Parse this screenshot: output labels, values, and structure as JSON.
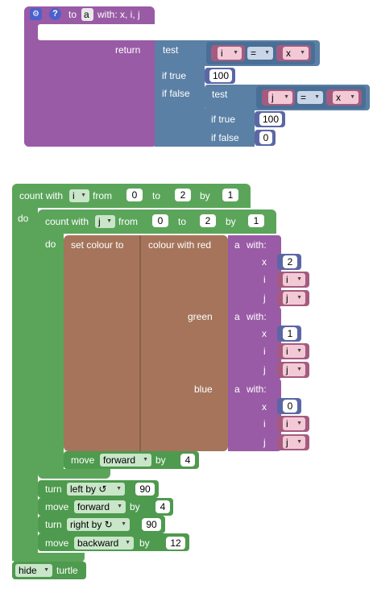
{
  "proc": {
    "to": "to",
    "name": "a",
    "with": "with: x, i, j",
    "return": "return",
    "test": "test",
    "if_true": "if true",
    "if_false": "if false",
    "eq_left": "i",
    "eq_op": "=",
    "eq_right": "x",
    "true_val": "100",
    "inner_test": "test",
    "inner_eq_left": "j",
    "inner_eq_op": "=",
    "inner_eq_right": "x",
    "inner_true": "if true",
    "inner_true_val": "100",
    "inner_false": "if false",
    "inner_false_val": "0"
  },
  "outer_loop": {
    "count_with": "count with",
    "var": "i",
    "from": "from",
    "from_val": "0",
    "to": "to",
    "to_val": "2",
    "by": "by",
    "by_val": "1",
    "do": "do"
  },
  "inner_loop": {
    "count_with": "count with",
    "var": "j",
    "from": "from",
    "from_val": "0",
    "to": "to",
    "to_val": "2",
    "by": "by",
    "by_val": "1",
    "do": "do"
  },
  "set_colour": {
    "label": "set colour to",
    "colour_with_red": "colour with red",
    "green": "green",
    "blue": "blue",
    "call_a": "a",
    "with": "with:",
    "x": "x",
    "i": "i",
    "j": "j",
    "red_x": "2",
    "green_x": "1",
    "blue_x": "0"
  },
  "move1": {
    "move": "move",
    "dir": "forward",
    "by": "by",
    "val": "4"
  },
  "turn1": {
    "turn": "turn",
    "dir": "left by ↺",
    "val": "90"
  },
  "move2": {
    "move": "move",
    "dir": "forward",
    "by": "by",
    "val": "4"
  },
  "turn2": {
    "turn": "turn",
    "dir": "right by ↻",
    "val": "90"
  },
  "move3": {
    "move": "move",
    "dir": "backward",
    "by": "by",
    "val": "12"
  },
  "hide": {
    "dd": "hide",
    "label": "turtle"
  }
}
